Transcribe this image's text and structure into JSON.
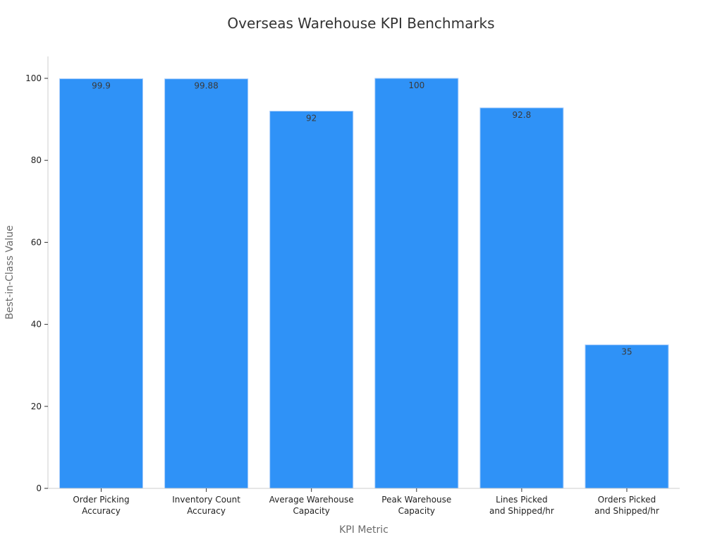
{
  "chart_data": {
    "type": "bar",
    "title": "Overseas Warehouse KPI Benchmarks",
    "xlabel": "KPI Metric",
    "ylabel": "Best-in-Class Value",
    "categories": [
      [
        "Order Picking",
        "Accuracy"
      ],
      [
        "Inventory Count",
        "Accuracy"
      ],
      [
        "Average Warehouse",
        "Capacity"
      ],
      [
        "Peak Warehouse",
        "Capacity"
      ],
      [
        "Lines Picked",
        "and Shipped/hr"
      ],
      [
        "Orders Picked",
        "and Shipped/hr"
      ]
    ],
    "values": [
      99.9,
      99.88,
      92,
      100,
      92.8,
      35
    ],
    "value_labels": [
      "99.9",
      "99.88",
      "92",
      "100",
      "92.8",
      "35"
    ],
    "ylim": [
      0,
      100
    ],
    "yticks": [
      0,
      20,
      40,
      60,
      80,
      100
    ],
    "grid": false,
    "bar_color": "#2f92f7",
    "bar_edge_color": "#a9cdfb",
    "legend": "none"
  }
}
